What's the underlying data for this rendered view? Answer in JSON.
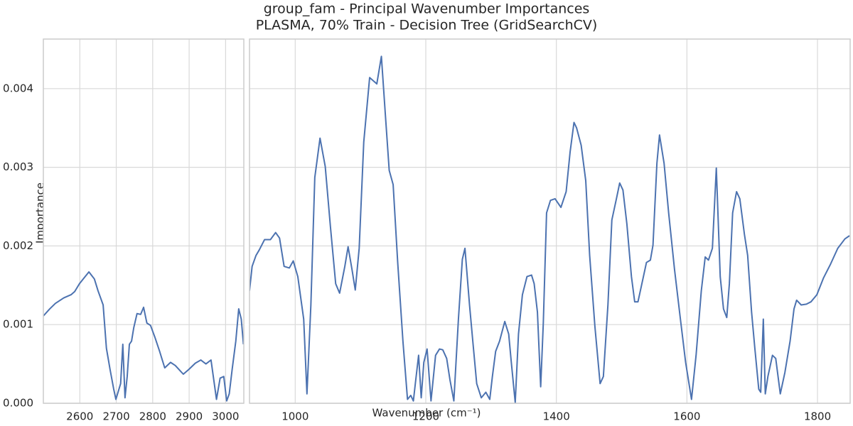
{
  "chart_data": [
    {
      "type": "line",
      "title": "group_fam - Principal Wavenumber Importances",
      "subtitle": "PLASMA, 70% Train - Decision Tree (GridSearchCV)",
      "y_label": "Importance",
      "x_label": "Wavenumber (cm⁻¹)",
      "ylim": [
        0,
        0.00463
      ],
      "yticks": [
        {
          "value": 0,
          "label": "0.000"
        },
        {
          "value": 0.001,
          "label": "0.001"
        },
        {
          "value": 0.002,
          "label": "0.002"
        },
        {
          "value": 0.003,
          "label": "0.003"
        },
        {
          "value": 0.004,
          "label": "0.004"
        }
      ],
      "xlim": [
        2500,
        3050
      ],
      "xticks": [
        2600,
        2700,
        2800,
        2900,
        3000
      ],
      "grid": true,
      "color": "#4c72b0",
      "x": [
        2500,
        2517.5,
        2533,
        2556,
        2576,
        2586,
        2599,
        2611,
        2625,
        2640,
        2650,
        2664,
        2673,
        2683,
        2693,
        2699,
        2712,
        2718,
        2724,
        2730,
        2736,
        2742,
        2748,
        2757,
        2767,
        2775,
        2784,
        2794,
        2806,
        2819,
        2833,
        2849,
        2862,
        2884,
        2899,
        2917,
        2932,
        2946,
        2960,
        2969,
        2975,
        2985,
        2995,
        3003,
        3010,
        3018,
        3028,
        3036,
        3043,
        3049
      ],
      "values": [
        0.00111,
        0.0012,
        0.00127,
        0.00134,
        0.00138,
        0.00142,
        0.00152,
        0.00159,
        0.00167,
        0.00158,
        0.00143,
        0.00125,
        0.0007,
        0.00043,
        0.00018,
        5e-05,
        0.00025,
        0.00075,
        7e-05,
        0.00034,
        0.00075,
        0.00079,
        0.00096,
        0.00114,
        0.00113,
        0.00122,
        0.00102,
        0.00099,
        0.00084,
        0.00066,
        0.00045,
        0.00052,
        0.00048,
        0.00037,
        0.00043,
        0.00051,
        0.00055,
        0.0005,
        0.00055,
        0.00025,
        5e-05,
        0.00032,
        0.00034,
        3e-05,
        0.00012,
        0.00043,
        0.00079,
        0.0012,
        0.00107,
        0.00075
      ]
    },
    {
      "type": "line",
      "ylim": [
        0,
        0.00463
      ],
      "xlim": [
        930,
        1850
      ],
      "xticks": [
        1000,
        1200,
        1400,
        1600,
        1800
      ],
      "grid": true,
      "color": "#4c72b0",
      "x": [
        930,
        934,
        940,
        945,
        953,
        962,
        970,
        976,
        983,
        991,
        997,
        1004,
        1013,
        1018,
        1024,
        1030,
        1038,
        1046,
        1054,
        1062,
        1068,
        1076,
        1081,
        1087,
        1092,
        1098,
        1105,
        1114,
        1125,
        1132,
        1138,
        1144,
        1150,
        1157,
        1165,
        1172,
        1177,
        1181,
        1184,
        1189,
        1193,
        1197,
        1202,
        1208,
        1215,
        1221,
        1226,
        1232,
        1237,
        1243,
        1250,
        1256,
        1260,
        1267,
        1272,
        1278,
        1285,
        1292,
        1298,
        1302,
        1307,
        1313,
        1321,
        1327,
        1331,
        1337,
        1342,
        1348,
        1355,
        1362,
        1366,
        1371,
        1376,
        1380,
        1385,
        1391,
        1398,
        1407,
        1415,
        1421,
        1427,
        1431,
        1438,
        1445,
        1451,
        1459,
        1467,
        1472,
        1479,
        1485,
        1492,
        1497,
        1502,
        1508,
        1515,
        1520,
        1525,
        1531,
        1538,
        1544,
        1548,
        1554,
        1558,
        1565,
        1572,
        1581,
        1590,
        1598,
        1607,
        1614,
        1622,
        1628,
        1633,
        1639,
        1645,
        1651,
        1656,
        1661,
        1665,
        1670,
        1676,
        1681,
        1688,
        1693,
        1699,
        1704,
        1710,
        1713,
        1717,
        1720,
        1724,
        1731,
        1736,
        1743,
        1750,
        1758,
        1764,
        1768,
        1775,
        1783,
        1790,
        1799,
        1809,
        1820,
        1831,
        1842,
        1849
      ],
      "values": [
        0.00143,
        0.00174,
        0.00188,
        0.00195,
        0.00208,
        0.00208,
        0.00217,
        0.0021,
        0.00174,
        0.00172,
        0.00181,
        0.00161,
        0.00107,
        0.00012,
        0.00125,
        0.00287,
        0.00337,
        0.00301,
        0.00224,
        0.00152,
        0.0014,
        0.00174,
        0.00199,
        0.0017,
        0.00144,
        0.00197,
        0.00332,
        0.00414,
        0.00406,
        0.00441,
        0.00368,
        0.00296,
        0.00278,
        0.00179,
        0.00079,
        5e-05,
        0.0001,
        3e-05,
        0.00025,
        0.00061,
        7e-05,
        0.00052,
        0.00069,
        3e-05,
        0.00061,
        0.00069,
        0.00068,
        0.00057,
        0.0003,
        3e-05,
        0.00107,
        0.00183,
        0.00197,
        0.00125,
        0.00079,
        0.00025,
        7e-05,
        0.00014,
        5e-05,
        0.00034,
        0.00066,
        0.00079,
        0.00104,
        0.00088,
        0.00052,
        1e-05,
        0.00088,
        0.00138,
        0.00161,
        0.00163,
        0.00152,
        0.00116,
        0.00021,
        0.00102,
        0.00242,
        0.00258,
        0.0026,
        0.00249,
        0.00269,
        0.00319,
        0.00357,
        0.0035,
        0.00328,
        0.00283,
        0.00188,
        0.00098,
        0.00025,
        0.00034,
        0.00125,
        0.00233,
        0.0026,
        0.0028,
        0.00271,
        0.00228,
        0.00161,
        0.00129,
        0.00129,
        0.00152,
        0.00179,
        0.00182,
        0.00201,
        0.00305,
        0.00341,
        0.00305,
        0.00242,
        0.0017,
        0.00107,
        0.00052,
        5e-05,
        0.00061,
        0.00143,
        0.00186,
        0.00182,
        0.00197,
        0.00299,
        0.00161,
        0.0012,
        0.00109,
        0.00152,
        0.00242,
        0.00269,
        0.0026,
        0.00215,
        0.00188,
        0.00116,
        0.0007,
        0.00018,
        0.00014,
        0.00107,
        0.00012,
        0.00034,
        0.00061,
        0.00057,
        0.00012,
        0.00039,
        0.00079,
        0.0012,
        0.00131,
        0.00125,
        0.00126,
        0.00129,
        0.00138,
        0.00159,
        0.00177,
        0.00197,
        0.00209,
        0.00213
      ]
    }
  ]
}
